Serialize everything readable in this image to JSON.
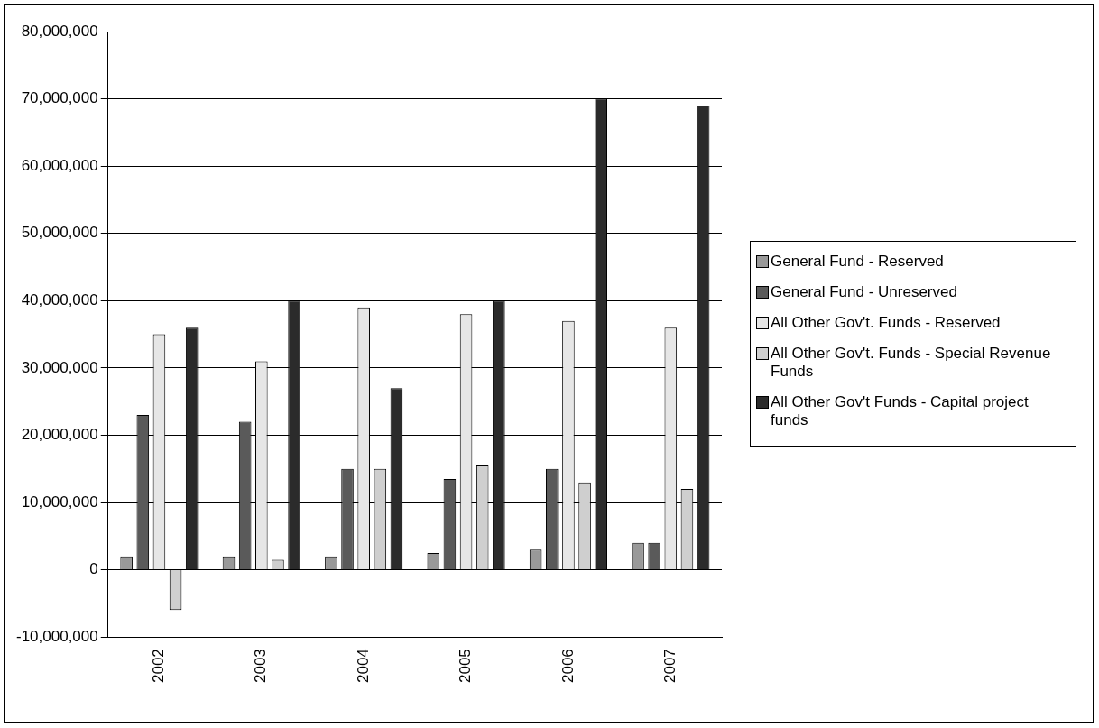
{
  "chart_data": {
    "type": "bar",
    "categories": [
      "2002",
      "2003",
      "2004",
      "2005",
      "2006",
      "2007"
    ],
    "series": [
      {
        "name": "General Fund - Reserved",
        "color": "#999999",
        "values": [
          2000000,
          2000000,
          2000000,
          2500000,
          3000000,
          4000000
        ]
      },
      {
        "name": "General Fund - Unreserved",
        "color": "#5a5a5a",
        "values": [
          23000000,
          22000000,
          15000000,
          13500000,
          15000000,
          4000000
        ]
      },
      {
        "name": "All Other Gov't. Funds - Reserved",
        "color": "#e6e6e6",
        "values": [
          35000000,
          31000000,
          39000000,
          38000000,
          37000000,
          36000000
        ]
      },
      {
        "name": "All Other Gov't. Funds - Special Revenue Funds",
        "color": "#cfcfcf",
        "values": [
          -6000000,
          1500000,
          15000000,
          15500000,
          13000000,
          12000000
        ]
      },
      {
        "name": "All Other Gov't Funds - Capital project funds",
        "color": "#2b2b2b",
        "values": [
          36000000,
          40000000,
          27000000,
          40000000,
          70000000,
          69000000
        ]
      }
    ],
    "ylim": [
      -10000000,
      80000000
    ],
    "yticks": [
      {
        "value": -10000000,
        "label": "-10,000,000"
      },
      {
        "value": 0,
        "label": "0"
      },
      {
        "value": 10000000,
        "label": "10,000,000"
      },
      {
        "value": 20000000,
        "label": "20,000,000"
      },
      {
        "value": 30000000,
        "label": "30,000,000"
      },
      {
        "value": 40000000,
        "label": "40,000,000"
      },
      {
        "value": 50000000,
        "label": "50,000,000"
      },
      {
        "value": 60000000,
        "label": "60,000,000"
      },
      {
        "value": 70000000,
        "label": "70,000,000"
      },
      {
        "value": 80000000,
        "label": "80,000,000"
      }
    ],
    "grid": "y",
    "legend": "right"
  }
}
